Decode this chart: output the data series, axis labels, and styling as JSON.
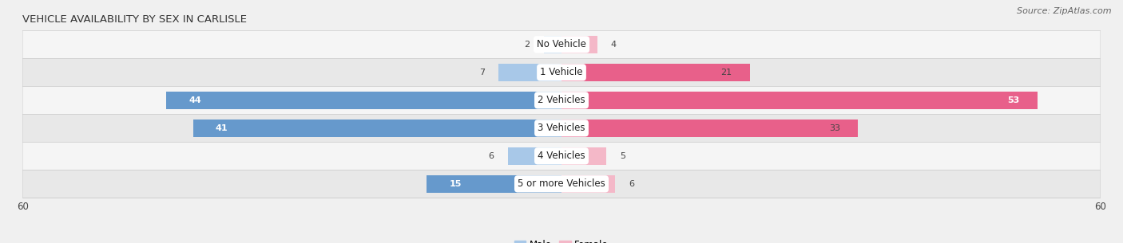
{
  "title": "VEHICLE AVAILABILITY BY SEX IN CARLISLE",
  "source": "Source: ZipAtlas.com",
  "categories": [
    "No Vehicle",
    "1 Vehicle",
    "2 Vehicles",
    "3 Vehicles",
    "4 Vehicles",
    "5 or more Vehicles"
  ],
  "male_values": [
    2,
    7,
    44,
    41,
    6,
    15
  ],
  "female_values": [
    4,
    21,
    53,
    33,
    5,
    6
  ],
  "male_color_light": "#a8c8e8",
  "male_color_dark": "#6699cc",
  "female_color_light": "#f4b8c8",
  "female_color_dark": "#e8608a",
  "bar_height": 0.62,
  "xlim": [
    -60,
    60
  ],
  "xtick_vals": [
    -60,
    60
  ],
  "background_color": "#f0f0f0",
  "row_bg_colors": [
    "#f5f5f5",
    "#e8e8e8"
  ],
  "row_border_color": "#cccccc",
  "title_fontsize": 9.5,
  "source_fontsize": 8,
  "label_fontsize": 8.5,
  "value_fontsize": 8,
  "legend_fontsize": 8.5,
  "large_threshold": 15
}
